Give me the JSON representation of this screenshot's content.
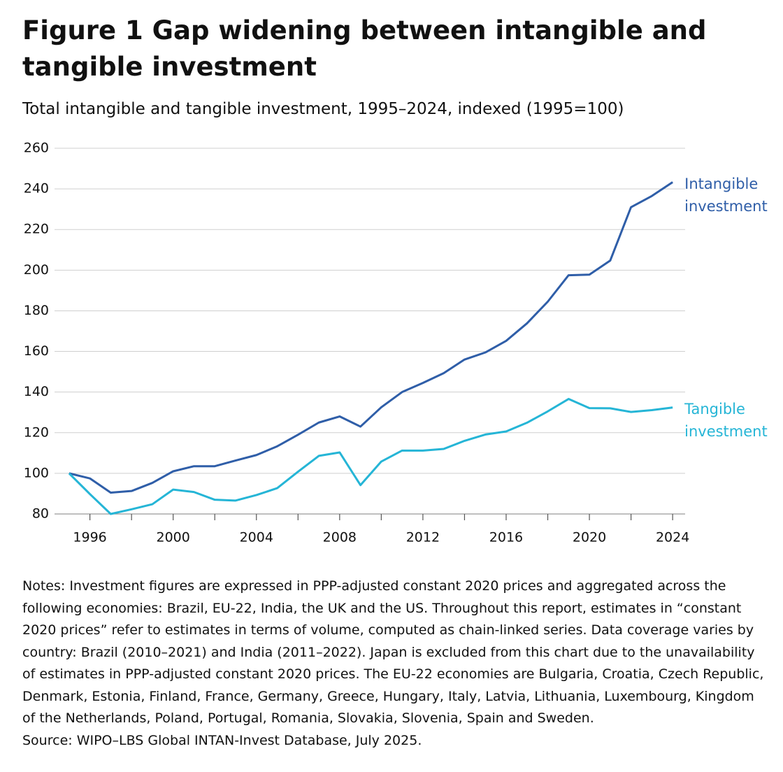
{
  "chart_data": {
    "type": "line",
    "title": "Figure 1 Gap widening between intangible and tangible investment",
    "subtitle": "Total intangible and tangible investment, 1995–2024, indexed (1995=100)",
    "x": [
      1995,
      1996,
      1997,
      1998,
      1999,
      2000,
      2001,
      2002,
      2003,
      2004,
      2005,
      2006,
      2007,
      2008,
      2009,
      2010,
      2011,
      2012,
      2013,
      2014,
      2015,
      2016,
      2017,
      2018,
      2019,
      2020,
      2021,
      2022,
      2023,
      2024
    ],
    "series": [
      {
        "name": "Intangible investment",
        "color": "#2f5ea8",
        "values": [
          100,
          97.5,
          90.5,
          91.3,
          95.3,
          101,
          103.5,
          103.5,
          106.3,
          109,
          113.3,
          119,
          125,
          128,
          123,
          132.5,
          140,
          144.5,
          149.3,
          156,
          159.5,
          165.2,
          173.8,
          184.5,
          197.5,
          197.8,
          204.7,
          231,
          236.5,
          243.3
        ]
      },
      {
        "name": "Tangible investment",
        "color": "#25b5d6",
        "values": [
          100,
          89.8,
          80,
          82.3,
          84.8,
          92,
          90.8,
          87,
          86.6,
          89.3,
          92.7,
          100.8,
          108.6,
          110.3,
          94.2,
          105.8,
          111.2,
          111.2,
          112,
          116,
          119.1,
          120.6,
          124.9,
          130.5,
          136.6,
          132.1,
          132,
          130.2,
          131.1,
          132.4
        ]
      }
    ],
    "xlim": [
      1994.3,
      2024.6
    ],
    "xticks": [
      1996,
      2000,
      2004,
      2008,
      2012,
      2016,
      2020,
      2024
    ],
    "xminor_ticks": [
      1998,
      2002,
      2006,
      2010,
      2014,
      2018,
      2022
    ],
    "ylim": [
      80,
      260
    ],
    "yticks": [
      80,
      100,
      120,
      140,
      160,
      180,
      200,
      220,
      240,
      260
    ],
    "grid": true,
    "notes": "Notes: Investment figures are expressed in PPP-adjusted constant 2020 prices and aggregated across the following economies: Brazil, EU-22, India, the UK and the US. Throughout this report, estimates in “constant 2020 prices” refer to estimates in terms of volume, computed as chain-linked series. Data coverage varies by country: Brazil (2010–2021) and India (2011–2022). Japan is excluded from this chart due to the unavailability of estimates in PPP-adjusted constant 2020 prices. The EU-22 economies are Bulgaria, Croatia, Czech Republic, Denmark, Estonia, Finland, France, Germany, Greece, Hungary, Italy, Latvia, Lithuania, Luxembourg, Kingdom of the Netherlands, Poland, Portugal, Romania, Slovakia, Slovenia, Spain and Sweden.",
    "source": "Source: WIPO–LBS Global INTAN-Invest Database, July 2025."
  }
}
